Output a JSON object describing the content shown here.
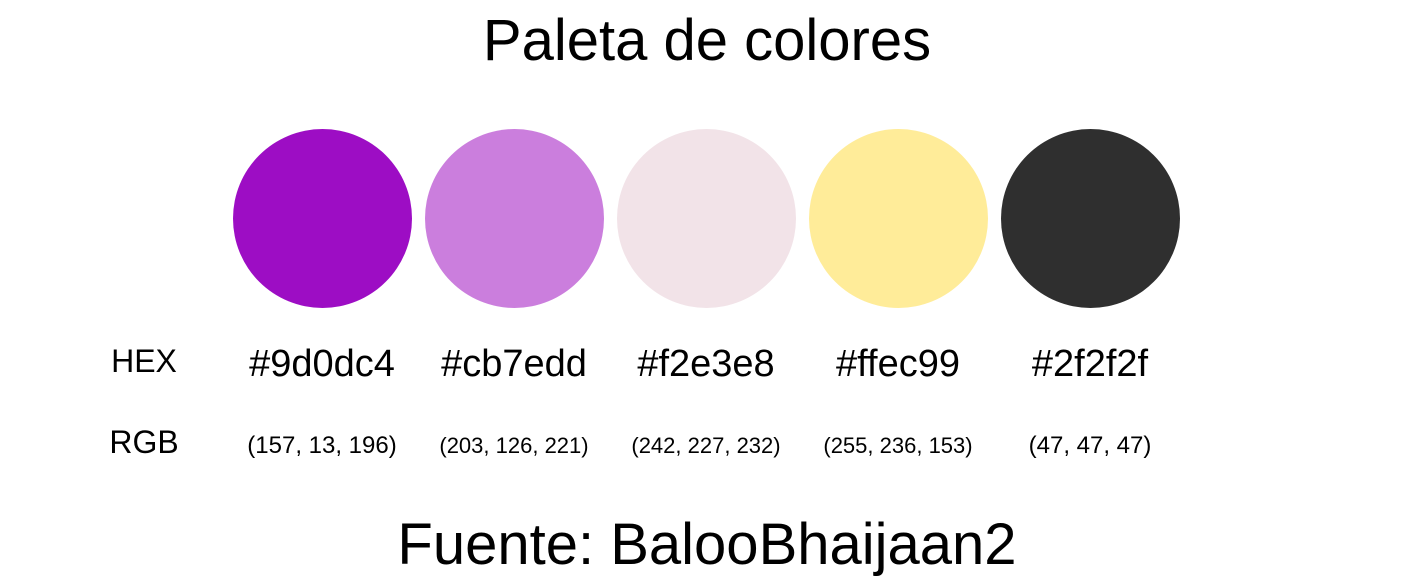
{
  "title": "Paleta de colores",
  "labels": {
    "hex": "HEX",
    "rgb": "RGB"
  },
  "colors": [
    {
      "hex": "#9d0dc4",
      "rgb": "(157, 13, 196)"
    },
    {
      "hex": "#cb7edd",
      "rgb": "(203, 126, 221)"
    },
    {
      "hex": "#f2e3e8",
      "rgb": "(242, 227, 232)"
    },
    {
      "hex": "#ffec99",
      "rgb": "(255, 236, 153)"
    },
    {
      "hex": "#2f2f2f",
      "rgb": "(47, 47, 47)"
    }
  ],
  "footer": "Fuente: BalooBhaijaan2"
}
